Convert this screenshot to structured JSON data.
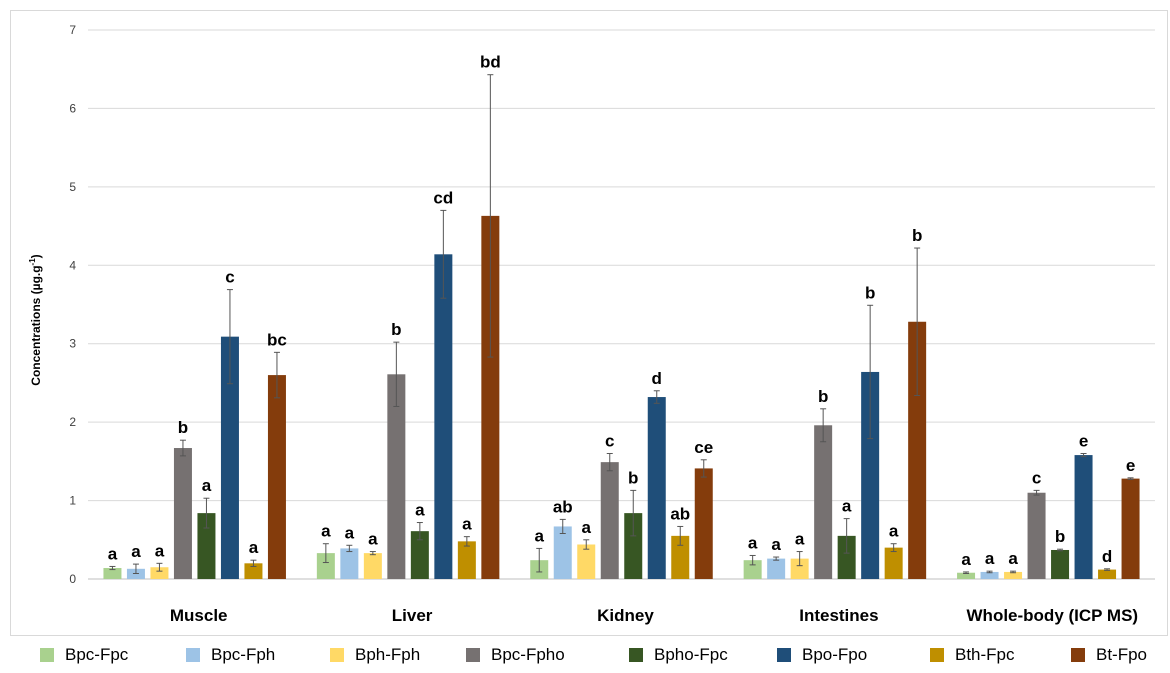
{
  "chart_data": {
    "type": "bar",
    "ylabel": "Concentrations (µg.g",
    "ylabel_sup": "-1",
    "ylabel_tail": ")",
    "ylim": [
      0,
      7
    ],
    "yticks": [
      "0",
      "1",
      "2",
      "3",
      "4",
      "5",
      "6",
      "7"
    ],
    "grid": true,
    "legend_position": "bottom",
    "categories": [
      "Muscle",
      "Liver",
      "Kidney",
      "Intestines",
      "Whole-body (ICP MS)"
    ],
    "series": [
      {
        "name": "Bpc-Fpc",
        "color": "#a9d18e",
        "values": [
          0.14,
          0.33,
          0.24,
          0.24,
          0.08
        ],
        "errors": [
          0.02,
          0.12,
          0.15,
          0.06,
          0.01
        ],
        "labels": [
          "a",
          "a",
          "a",
          "a",
          "a"
        ]
      },
      {
        "name": "Bpc-Fph",
        "color": "#9dc3e6",
        "values": [
          0.13,
          0.39,
          0.67,
          0.26,
          0.09
        ],
        "errors": [
          0.06,
          0.04,
          0.09,
          0.02,
          0.01
        ],
        "labels": [
          "a",
          "a",
          "ab",
          "a",
          "a"
        ]
      },
      {
        "name": "Bph-Fph",
        "color": "#ffd966",
        "values": [
          0.15,
          0.33,
          0.44,
          0.26,
          0.09
        ],
        "errors": [
          0.05,
          0.02,
          0.06,
          0.09,
          0.01
        ],
        "labels": [
          "a",
          "a",
          "a",
          "a",
          "a"
        ]
      },
      {
        "name": "Bpc-Fpho",
        "color": "#767171",
        "values": [
          1.67,
          2.61,
          1.49,
          1.96,
          1.1
        ],
        "errors": [
          0.1,
          0.41,
          0.11,
          0.21,
          0.03
        ],
        "labels": [
          "b",
          "b",
          "c",
          "b",
          "c"
        ]
      },
      {
        "name": "Bpho-Fpc",
        "color": "#375623",
        "values": [
          0.84,
          0.61,
          0.84,
          0.55,
          0.37
        ],
        "errors": [
          0.19,
          0.11,
          0.29,
          0.22,
          0.01
        ],
        "labels": [
          "a",
          "a",
          "b",
          "a",
          "b"
        ]
      },
      {
        "name": "Bpo-Fpo",
        "color": "#1f4e79",
        "values": [
          3.09,
          4.14,
          2.32,
          2.64,
          1.58
        ],
        "errors": [
          0.6,
          0.56,
          0.08,
          0.85,
          0.02
        ],
        "labels": [
          "c",
          "cd",
          "d",
          "b",
          "e"
        ]
      },
      {
        "name": "Bth-Fpc",
        "color": "#bf8f00",
        "values": [
          0.2,
          0.48,
          0.55,
          0.4,
          0.12
        ],
        "errors": [
          0.04,
          0.06,
          0.12,
          0.05,
          0.01
        ],
        "labels": [
          "a",
          "a",
          "ab",
          "a",
          "d"
        ]
      },
      {
        "name": "Bt-Fpo",
        "color": "#843c0c",
        "values": [
          2.6,
          4.63,
          1.41,
          3.28,
          1.28
        ],
        "errors": [
          0.29,
          1.8,
          0.11,
          0.94,
          0.01
        ],
        "labels": [
          "bc",
          "bd",
          "ce",
          "b",
          "e"
        ]
      }
    ]
  }
}
